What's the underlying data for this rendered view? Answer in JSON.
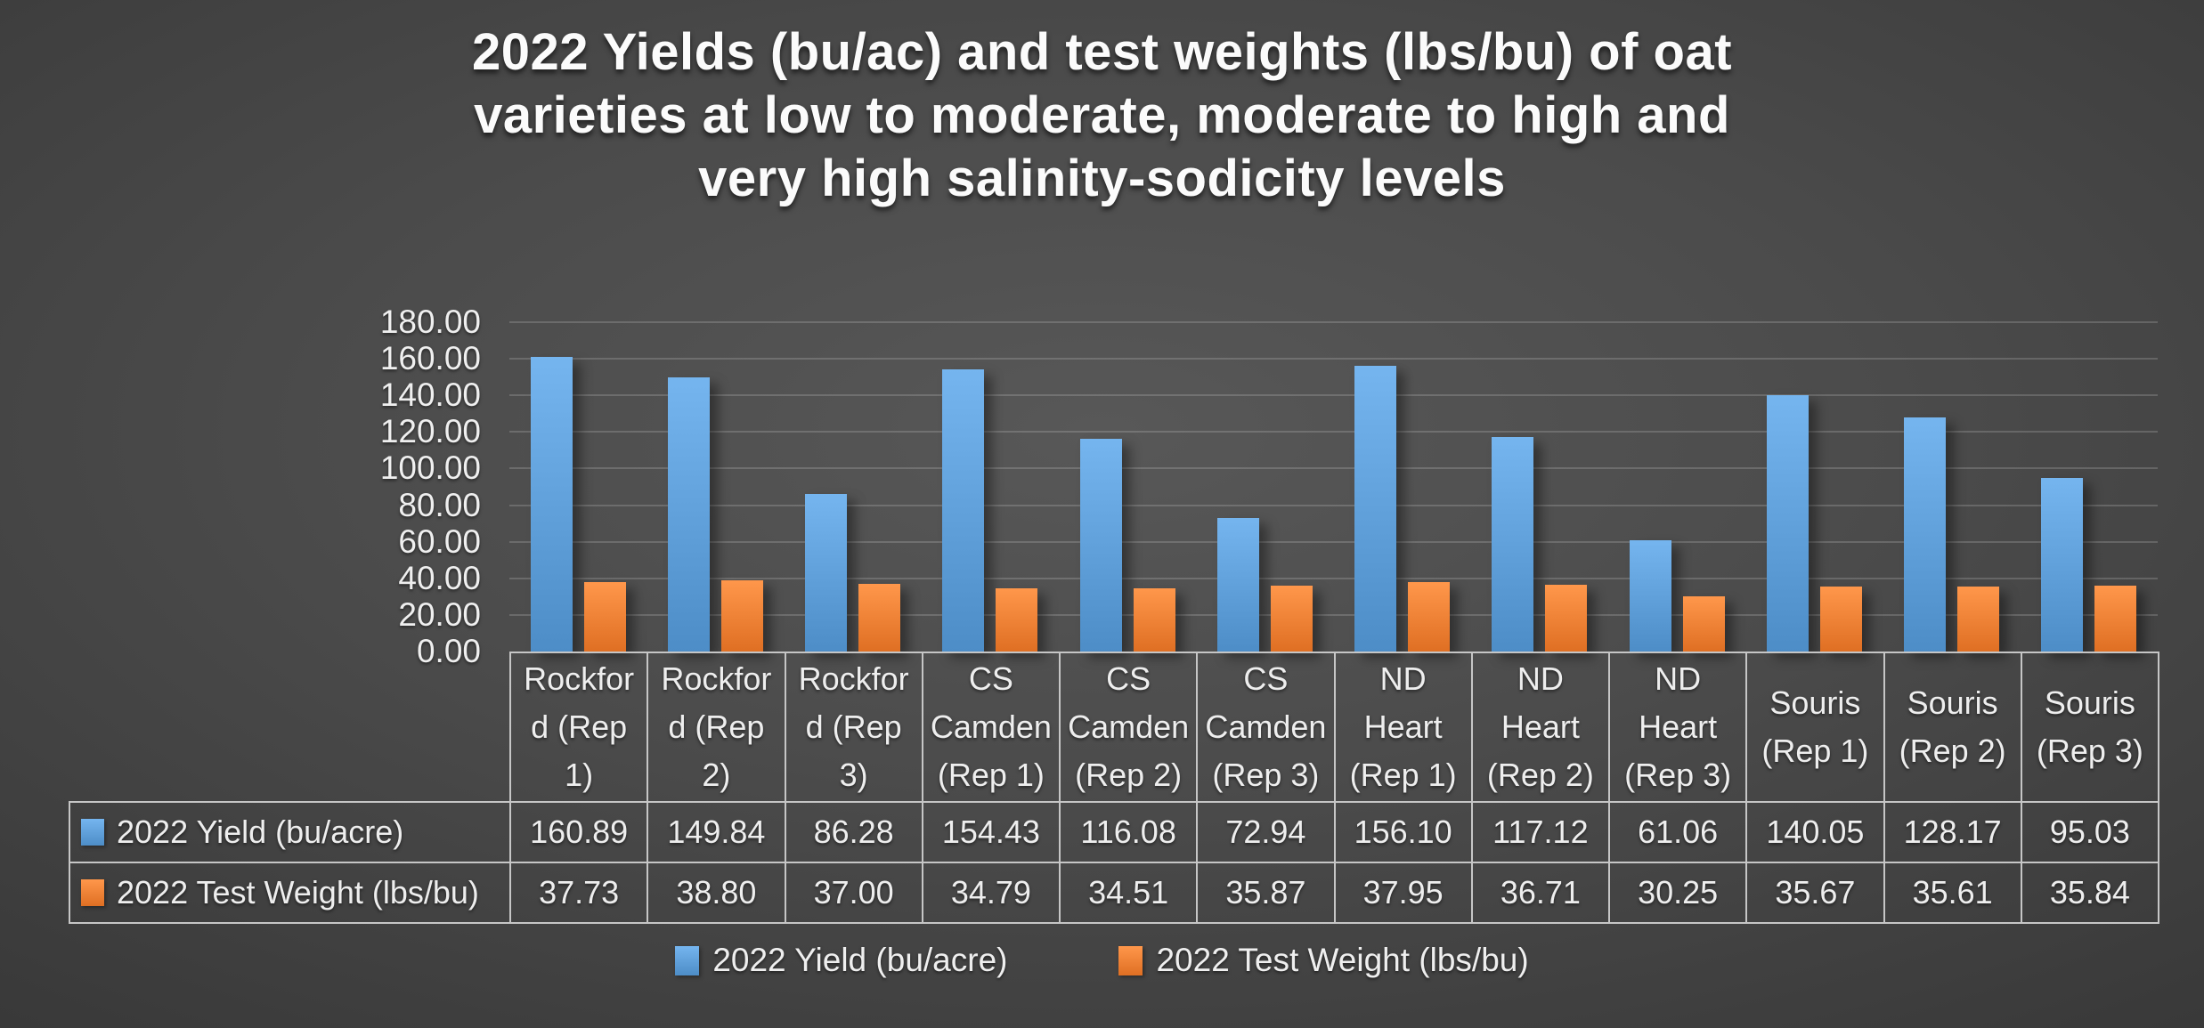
{
  "slide": {
    "title_lines": [
      "2022 Yields (bu/ac) and test weights (lbs/bu) of oat",
      "varieties at low to moderate, moderate to high and",
      "very high salinity-sodicity levels"
    ]
  },
  "colors": {
    "yield_series": "#5B9BD5",
    "test_weight_series": "#ED7D31",
    "background_center": "#585858",
    "background_edge": "#262626",
    "gridline": "#6e6e6e",
    "table_border": "#c6c6c6",
    "text": "#efefef"
  },
  "chart_data": {
    "type": "bar",
    "title": "2022 Yields (bu/ac) and test weights (lbs/bu) of oat varieties at low to moderate, moderate to high and very high salinity-sodicity levels",
    "categories": [
      "Rockford (Rep 1)",
      "Rockford (Rep 2)",
      "Rockford (Rep 3)",
      "CS Camden (Rep 1)",
      "CS Camden (Rep 2)",
      "CS Camden (Rep 3)",
      "ND Heart (Rep 1)",
      "ND Heart (Rep 2)",
      "ND Heart (Rep 3)",
      "Souris (Rep 1)",
      "Souris (Rep 2)",
      "Souris (Rep 3)"
    ],
    "series": [
      {
        "name": "2022 Yield (bu/acre)",
        "color": "#5B9BD5",
        "values": [
          160.89,
          149.84,
          86.28,
          154.43,
          116.08,
          72.94,
          156.1,
          117.12,
          61.06,
          140.05,
          128.17,
          95.03
        ]
      },
      {
        "name": "2022 Test Weight (lbs/bu)",
        "color": "#ED7D31",
        "values": [
          37.73,
          38.8,
          37.0,
          34.79,
          34.51,
          35.87,
          37.95,
          36.71,
          30.25,
          35.67,
          35.61,
          35.84
        ]
      }
    ],
    "xlabel": "",
    "ylabel": "",
    "ylim": [
      0,
      180
    ],
    "ytick_step": 20,
    "ytick_decimals": 2,
    "grid": "horizontal",
    "legend_position": "bottom",
    "show_data_table": true
  }
}
